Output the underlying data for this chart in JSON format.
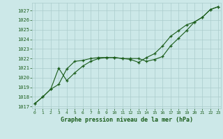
{
  "line1_x": [
    0,
    1,
    2,
    3,
    4,
    5,
    6,
    7,
    8,
    9,
    10,
    11,
    12,
    13,
    14,
    15,
    16,
    17,
    18,
    19,
    20,
    21,
    22,
    23
  ],
  "line1_y": [
    1017.3,
    1018.0,
    1018.8,
    1019.3,
    1020.9,
    1021.7,
    1021.8,
    1022.0,
    1022.1,
    1022.1,
    1022.1,
    1022.0,
    1022.0,
    1022.0,
    1021.7,
    1021.9,
    1022.2,
    1023.3,
    1024.1,
    1024.9,
    1025.8,
    1026.3,
    1027.1,
    1027.4
  ],
  "line2_x": [
    0,
    1,
    2,
    3,
    4,
    5,
    6,
    7,
    8,
    9,
    10,
    11,
    12,
    13,
    14,
    15,
    16,
    17,
    18,
    19,
    20,
    21,
    22,
    23
  ],
  "line2_y": [
    1017.3,
    1018.0,
    1018.8,
    1021.0,
    1019.7,
    1020.5,
    1021.2,
    1021.7,
    1022.0,
    1022.1,
    1022.1,
    1022.0,
    1021.9,
    1021.6,
    1022.1,
    1022.5,
    1023.3,
    1024.3,
    1024.9,
    1025.5,
    1025.8,
    1026.3,
    1027.1,
    1027.4
  ],
  "line_color": "#1a5c1a",
  "bg_color": "#cce8e8",
  "grid_color": "#aacccc",
  "xlabel": "Graphe pression niveau de la mer (hPa)",
  "ylim": [
    1016.8,
    1027.8
  ],
  "xlim": [
    -0.3,
    23.3
  ],
  "yticks": [
    1017,
    1018,
    1019,
    1020,
    1021,
    1022,
    1023,
    1024,
    1025,
    1026,
    1027
  ],
  "xticks": [
    0,
    1,
    2,
    3,
    4,
    5,
    6,
    7,
    8,
    9,
    10,
    11,
    12,
    13,
    14,
    15,
    16,
    17,
    18,
    19,
    20,
    21,
    22,
    23
  ]
}
